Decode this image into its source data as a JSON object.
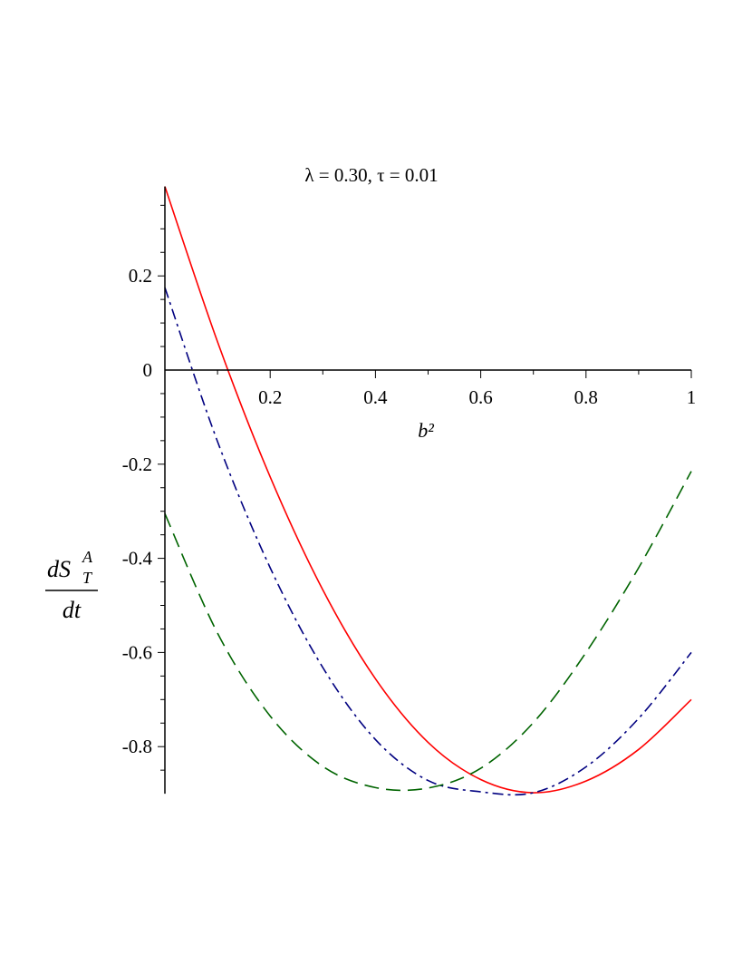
{
  "chart_data": {
    "type": "line",
    "title": "λ = 0.30, τ = 0.01",
    "xlabel": "b²",
    "ylabel": {
      "numerator": "dS",
      "superscript": "A",
      "subscript": "T",
      "denominator": "dt"
    },
    "xlim": [
      0,
      1
    ],
    "ylim": [
      -0.9,
      0.39
    ],
    "xticks": [
      {
        "value": 0.2,
        "label": "0.2"
      },
      {
        "value": 0.4,
        "label": "0.4"
      },
      {
        "value": 0.6,
        "label": "0.6"
      },
      {
        "value": 0.8,
        "label": "0.8"
      },
      {
        "value": 1.0,
        "label": "1"
      }
    ],
    "yticks": [
      {
        "value": 0.2,
        "label": "0.2"
      },
      {
        "value": 0,
        "label": "0"
      },
      {
        "value": -0.2,
        "label": "-0.2"
      },
      {
        "value": -0.4,
        "label": "-0.4"
      },
      {
        "value": -0.6,
        "label": "-0.6"
      },
      {
        "value": -0.8,
        "label": "-0.8"
      }
    ],
    "grid": false,
    "legend": "none",
    "series": [
      {
        "color": "#ff0000",
        "dash": "solid",
        "x": [
          0,
          0.1,
          0.2,
          0.3,
          0.4,
          0.5,
          0.6,
          0.7,
          0.8,
          0.9,
          1.0
        ],
        "y": [
          0.39,
          0.06,
          -0.227,
          -0.467,
          -0.656,
          -0.791,
          -0.87,
          -0.898,
          -0.873,
          -0.806,
          -0.7
        ]
      },
      {
        "color": "#000080",
        "dash": "dashdot",
        "x": [
          0,
          0.1,
          0.2,
          0.3,
          0.4,
          0.5,
          0.6,
          0.7,
          0.8,
          0.9,
          1.0
        ],
        "y": [
          0.175,
          -0.152,
          -0.42,
          -0.632,
          -0.785,
          -0.872,
          -0.896,
          -0.898,
          -0.843,
          -0.74,
          -0.6
        ]
      },
      {
        "color": "#006400",
        "dash": "dashed",
        "x": [
          0,
          0.1,
          0.2,
          0.3,
          0.4,
          0.5,
          0.6,
          0.7,
          0.8,
          0.9,
          1.0
        ],
        "y": [
          -0.305,
          -0.559,
          -0.735,
          -0.842,
          -0.887,
          -0.888,
          -0.846,
          -0.749,
          -0.6,
          -0.42,
          -0.215
        ]
      }
    ]
  }
}
